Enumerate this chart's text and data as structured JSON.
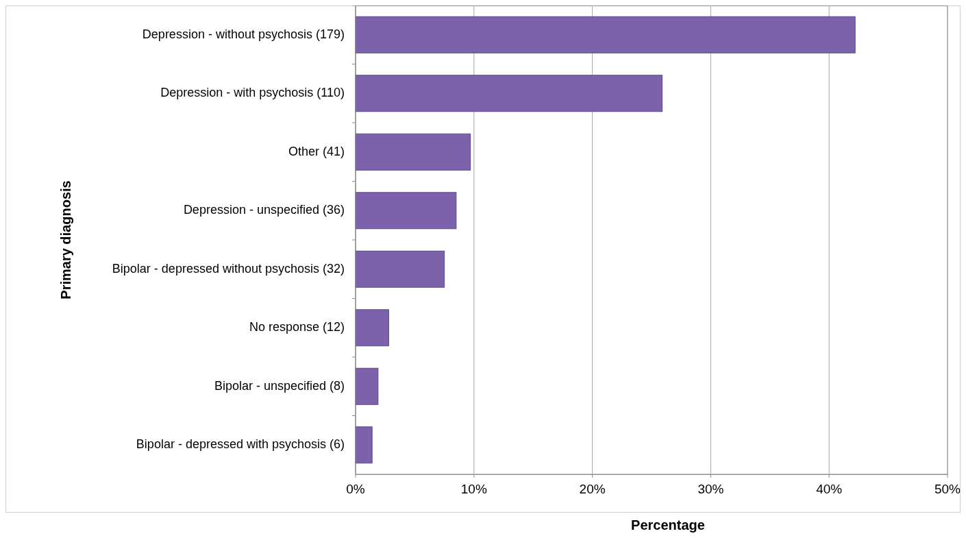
{
  "chart_data": {
    "type": "bar",
    "orientation": "horizontal",
    "xlabel": "Percentage",
    "ylabel": "Primary diagnosis",
    "categories": [
      "Depression - without psychosis (179)",
      "Depression - with psychosis (110)",
      "Other (41)",
      "Depression - unspecified (36)",
      "Bipolar - depressed without psychosis (32)",
      "No response (12)",
      "Bipolar - unspecified (8)",
      "Bipolar - depressed with psychosis (6)"
    ],
    "values": [
      42.2,
      25.9,
      9.7,
      8.5,
      7.5,
      2.8,
      1.9,
      1.4
    ],
    "color": "#7b62aa",
    "xlim": [
      0,
      50
    ],
    "xticks": [
      {
        "value": 0,
        "label": "0%"
      },
      {
        "value": 10,
        "label": "10%"
      },
      {
        "value": 20,
        "label": "20%"
      },
      {
        "value": 30,
        "label": "30%"
      },
      {
        "value": 40,
        "label": "40%"
      },
      {
        "value": 50,
        "label": "50%"
      }
    ],
    "grid": "x"
  }
}
